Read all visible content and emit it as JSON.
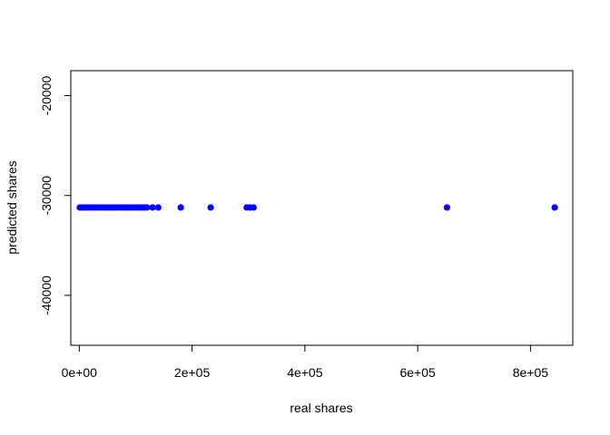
{
  "chart_data": {
    "type": "scatter",
    "title": "",
    "xlabel": "real shares",
    "ylabel": "predicted shares",
    "xlim": [
      -15000,
      875000
    ],
    "ylim": [
      -45000,
      -17500
    ],
    "grid": false,
    "legend": "none",
    "point_color": "#0000ff",
    "x_ticks": [
      {
        "value": 0,
        "label": "0e+00"
      },
      {
        "value": 200000,
        "label": "2e+05"
      },
      {
        "value": 400000,
        "label": "4e+05"
      },
      {
        "value": 600000,
        "label": "6e+05"
      },
      {
        "value": 800000,
        "label": "8e+05"
      }
    ],
    "y_ticks": [
      {
        "value": -40000,
        "label": "-40000"
      },
      {
        "value": -30000,
        "label": "-30000"
      },
      {
        "value": -20000,
        "label": "-20000"
      }
    ],
    "points": [
      {
        "x": 1000,
        "y": -31200
      },
      {
        "x": 5000,
        "y": -31200
      },
      {
        "x": 10000,
        "y": -31200
      },
      {
        "x": 15000,
        "y": -31200
      },
      {
        "x": 20000,
        "y": -31200
      },
      {
        "x": 25000,
        "y": -31200
      },
      {
        "x": 30000,
        "y": -31200
      },
      {
        "x": 35000,
        "y": -31200
      },
      {
        "x": 40000,
        "y": -31200
      },
      {
        "x": 45000,
        "y": -31200
      },
      {
        "x": 50000,
        "y": -31200
      },
      {
        "x": 55000,
        "y": -31200
      },
      {
        "x": 60000,
        "y": -31200
      },
      {
        "x": 65000,
        "y": -31200
      },
      {
        "x": 70000,
        "y": -31200
      },
      {
        "x": 75000,
        "y": -31200
      },
      {
        "x": 80000,
        "y": -31200
      },
      {
        "x": 85000,
        "y": -31200
      },
      {
        "x": 90000,
        "y": -31200
      },
      {
        "x": 95000,
        "y": -31200
      },
      {
        "x": 100000,
        "y": -31200
      },
      {
        "x": 105000,
        "y": -31200
      },
      {
        "x": 110000,
        "y": -31200
      },
      {
        "x": 115000,
        "y": -31200
      },
      {
        "x": 120000,
        "y": -31200
      },
      {
        "x": 130000,
        "y": -31200
      },
      {
        "x": 140000,
        "y": -31200
      },
      {
        "x": 180000,
        "y": -31200
      },
      {
        "x": 233000,
        "y": -31200
      },
      {
        "x": 297000,
        "y": -31200
      },
      {
        "x": 303000,
        "y": -31200
      },
      {
        "x": 309000,
        "y": -31200
      },
      {
        "x": 652000,
        "y": -31200
      },
      {
        "x": 843000,
        "y": -31200
      }
    ]
  }
}
